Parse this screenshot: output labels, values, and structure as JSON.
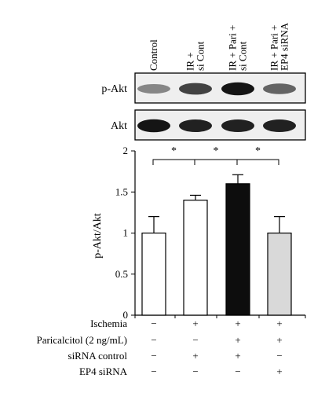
{
  "figure": {
    "lanes": [
      "Control",
      "IR + si Cont",
      "IR + Pari + si Cont",
      "IR + Pari + EP4 siRNA"
    ],
    "lane_label_lines": [
      [
        "Control"
      ],
      [
        "IR +",
        "si Cont"
      ],
      [
        "IR + Pari +",
        "si Cont"
      ],
      [
        "IR + Pari +",
        "EP4 siRNA"
      ]
    ],
    "blots": [
      {
        "label": "p-Akt",
        "intensity": [
          0.45,
          0.75,
          0.95,
          0.6
        ]
      },
      {
        "label": "Akt",
        "intensity": [
          0.95,
          0.9,
          0.9,
          0.9
        ]
      }
    ]
  },
  "chart_data": {
    "type": "bar",
    "categories": [
      "Control",
      "IR + si Cont",
      "IR + Pari + si Cont",
      "IR + Pari + EP4 siRNA"
    ],
    "values": [
      1.0,
      1.4,
      1.6,
      1.0
    ],
    "errors": [
      0.2,
      0.06,
      0.11,
      0.2
    ],
    "bar_colors": [
      "#ffffff",
      "#ffffff",
      "#0d0d0d",
      "#d9d9d9"
    ],
    "ylabel": "p-Akt/Akt",
    "ylim": [
      0,
      2
    ],
    "yticks": [
      0,
      0.5,
      1,
      1.5,
      2
    ],
    "ytick_labels": [
      "0",
      "0.5",
      "1",
      "1.5",
      "2"
    ],
    "significance": [
      {
        "from": 0,
        "to": 1,
        "label": "*"
      },
      {
        "from": 1,
        "to": 2,
        "label": "*"
      },
      {
        "from": 2,
        "to": 3,
        "label": "*"
      }
    ],
    "grid": false
  },
  "conditions": [
    {
      "label": "Ischemia",
      "values": [
        "−",
        "+",
        "+",
        "+"
      ]
    },
    {
      "label": "Paricalcitol (2 ng/mL)",
      "values": [
        "−",
        "−",
        "+",
        "+"
      ]
    },
    {
      "label": "siRNA control",
      "values": [
        "−",
        "+",
        "+",
        "−"
      ]
    },
    {
      "label": "EP4 siRNA",
      "values": [
        "−",
        "−",
        "−",
        "+"
      ]
    }
  ]
}
